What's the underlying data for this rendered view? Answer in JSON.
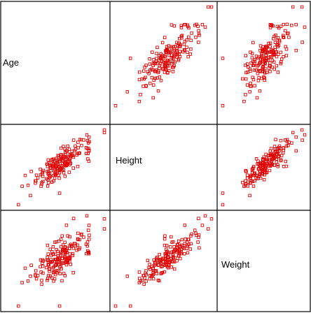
{
  "chart_data": {
    "type": "scatter",
    "kind": "scatterplot-matrix",
    "variables": [
      "Age",
      "Height",
      "Weight"
    ],
    "marker": "open-square",
    "point_color": "#e00000",
    "seed": 7,
    "n_points": 180,
    "panel_order": [
      [
        "label",
        "Age-vs-Height",
        "Age-vs-Weight"
      ],
      [
        "Height-vs-Age",
        "label",
        "Height-vs-Weight"
      ],
      [
        "Weight-vs-Age",
        "Weight-vs-Height",
        "label"
      ]
    ]
  }
}
